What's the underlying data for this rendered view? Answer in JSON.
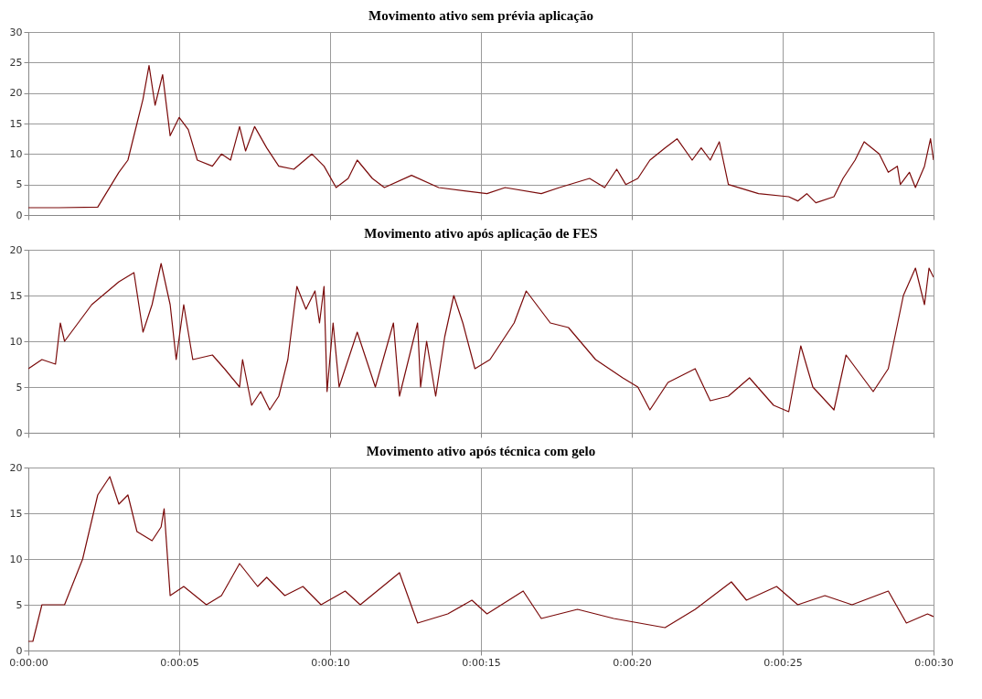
{
  "chart_data": [
    {
      "type": "line",
      "title": "Movimento ativo sem prévia aplicação",
      "tick_labels": "y",
      "grid": true,
      "marker": "none",
      "line_style": "solid",
      "xlim": [
        0,
        30
      ],
      "xticks": [
        {
          "value": 0,
          "label": null
        },
        {
          "value": 5,
          "label": null
        },
        {
          "value": 10,
          "label": null
        },
        {
          "value": 15,
          "label": null
        },
        {
          "value": 20,
          "label": null
        },
        {
          "value": 25,
          "label": null
        },
        {
          "value": 30,
          "label": null
        }
      ],
      "ylim": [
        0,
        30
      ],
      "yticks": [
        0,
        5,
        10,
        15,
        20,
        25,
        30
      ],
      "x": [
        0,
        1,
        2.3,
        3.0,
        3.3,
        3.6,
        3.8,
        4.0,
        4.2,
        4.45,
        4.6,
        4.7,
        5.0,
        5.3,
        5.6,
        6.1,
        6.4,
        6.7,
        7.0,
        7.2,
        7.5,
        7.9,
        8.3,
        8.8,
        9.4,
        9.8,
        10.2,
        10.6,
        10.9,
        11.4,
        11.8,
        12.7,
        13.6,
        15.2,
        15.8,
        17.0,
        17.6,
        18.6,
        19.1,
        19.5,
        19.8,
        20.2,
        20.6,
        21.1,
        21.5,
        22.0,
        22.3,
        22.6,
        22.9,
        23.2,
        24.2,
        25.2,
        25.5,
        25.8,
        26.1,
        26.7,
        27.0,
        27.4,
        27.7,
        28.2,
        28.5,
        28.8,
        28.9,
        29.2,
        29.4,
        29.7,
        29.9,
        30
      ],
      "series": [
        {
          "color": "#7a0a0a",
          "values": [
            1.2,
            1.2,
            1.3,
            7,
            9,
            15,
            19,
            24.5,
            18,
            23,
            17,
            13,
            16,
            14,
            9,
            8,
            10,
            9,
            14.5,
            10.5,
            14.5,
            11,
            8,
            7.5,
            10,
            8,
            4.5,
            6,
            9,
            6,
            4.5,
            6.5,
            4.5,
            3.5,
            4.5,
            3.5,
            4.5,
            6,
            4.5,
            7.5,
            5,
            6,
            9,
            11,
            12.5,
            9,
            11,
            9,
            12,
            5,
            3.5,
            3,
            2.3,
            3.5,
            2,
            3,
            6,
            9,
            12,
            10,
            7,
            8,
            5,
            7,
            4.5,
            8,
            12.5,
            9
          ]
        }
      ]
    },
    {
      "type": "line",
      "title": "Movimento ativo após aplicação de FES",
      "tick_labels": "y",
      "grid": true,
      "marker": "none",
      "line_style": "solid",
      "xlim": [
        0,
        30
      ],
      "xticks": [
        {
          "value": 0,
          "label": null
        },
        {
          "value": 5,
          "label": null
        },
        {
          "value": 10,
          "label": null
        },
        {
          "value": 15,
          "label": null
        },
        {
          "value": 20,
          "label": null
        },
        {
          "value": 25,
          "label": null
        },
        {
          "value": 30,
          "label": null
        }
      ],
      "ylim": [
        0,
        20
      ],
      "yticks": [
        0,
        5,
        10,
        15,
        20
      ],
      "x": [
        0,
        0.45,
        0.9,
        1.06,
        1.2,
        2.1,
        3.0,
        3.5,
        3.8,
        4.1,
        4.4,
        4.7,
        4.9,
        5.15,
        5.45,
        6.1,
        6.5,
        7.0,
        7.1,
        7.4,
        7.7,
        8.0,
        8.3,
        8.6,
        8.9,
        9.2,
        9.5,
        9.65,
        9.8,
        9.9,
        10.1,
        10.3,
        10.9,
        11.5,
        12.1,
        12.3,
        12.9,
        13.0,
        13.2,
        13.5,
        13.8,
        14.1,
        14.4,
        14.8,
        15.3,
        16.1,
        16.5,
        17.3,
        17.9,
        18.8,
        19.7,
        20.2,
        20.6,
        21.2,
        22.1,
        22.6,
        23.2,
        23.9,
        24.7,
        25.2,
        25.6,
        26.0,
        26.7,
        27.1,
        28.0,
        28.5,
        29.0,
        29.4,
        29.7,
        29.85,
        30
      ],
      "series": [
        {
          "color": "#7a0a0a",
          "values": [
            7,
            8,
            7.5,
            12,
            10,
            14,
            16.5,
            17.5,
            11,
            14,
            18.5,
            14,
            8,
            14,
            8,
            8.5,
            7,
            5,
            8,
            3,
            4.5,
            2.5,
            4,
            8,
            16,
            13.5,
            15.5,
            12,
            16,
            4.5,
            12,
            5,
            11,
            5,
            12,
            4,
            12,
            5,
            10,
            4,
            10.5,
            15,
            12,
            7,
            8,
            12,
            15.5,
            12,
            11.5,
            8,
            6,
            5,
            2.5,
            5.5,
            7,
            3.5,
            4,
            6,
            3,
            2.3,
            9.5,
            5,
            2.5,
            8.5,
            4.5,
            7,
            15,
            18,
            14,
            18,
            17
          ]
        }
      ]
    },
    {
      "type": "line",
      "title": "Movimento ativo após técnica com gelo",
      "grid": true,
      "marker": "none",
      "line_style": "solid",
      "xlim": [
        0,
        30
      ],
      "xticks": [
        {
          "value": 0,
          "label": "0:00:00"
        },
        {
          "value": 5,
          "label": "0:00:05"
        },
        {
          "value": 10,
          "label": "0:00:10"
        },
        {
          "value": 15,
          "label": "0:00:15"
        },
        {
          "value": 20,
          "label": "0:00:20"
        },
        {
          "value": 25,
          "label": "0:00:25"
        },
        {
          "value": 30,
          "label": "0:00:30"
        }
      ],
      "ylim": [
        0,
        20
      ],
      "yticks": [
        0,
        5,
        10,
        15,
        20
      ],
      "x": [
        0,
        0.15,
        0.45,
        1.2,
        1.8,
        2.3,
        2.7,
        3.0,
        3.3,
        3.6,
        4.1,
        4.4,
        4.5,
        4.7,
        5.15,
        5.9,
        6.4,
        7.0,
        7.6,
        7.9,
        8.5,
        9.1,
        9.7,
        10.5,
        11.0,
        12.3,
        12.9,
        13.9,
        14.7,
        15.2,
        16.4,
        17.0,
        18.2,
        19.4,
        21.1,
        22.1,
        23.3,
        23.8,
        24.8,
        25.5,
        26.4,
        27.3,
        28.5,
        29.1,
        29.8,
        30
      ],
      "series": [
        {
          "color": "#7a0a0a",
          "values": [
            1,
            1,
            5,
            5,
            10,
            17,
            19,
            16,
            17,
            13,
            12,
            13.5,
            15.5,
            6,
            7,
            5,
            6,
            9.5,
            7,
            8,
            6,
            7,
            5,
            6.5,
            5,
            8.5,
            3,
            4,
            5.5,
            4,
            6.5,
            3.5,
            4.5,
            3.5,
            2.5,
            4.5,
            7.5,
            5.5,
            7,
            5,
            6,
            5,
            6.5,
            3,
            4,
            3.7
          ]
        }
      ]
    }
  ]
}
